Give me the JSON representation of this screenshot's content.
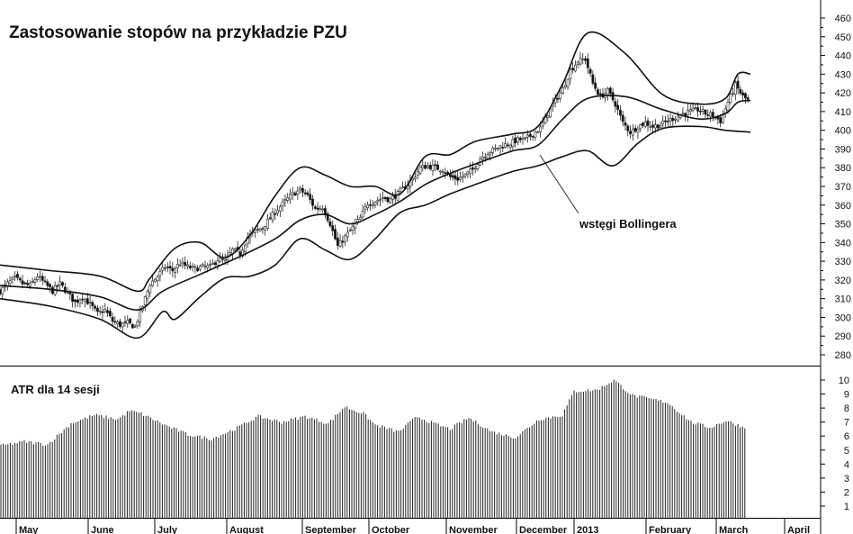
{
  "chart_data": [
    {
      "type": "candlestick",
      "title": "Zastosowanie stopów na przykładzie PZU",
      "annotation": "wstęgi Bollingera",
      "y_ticks": [
        280,
        290,
        300,
        310,
        320,
        330,
        340,
        350,
        360,
        370,
        380,
        390,
        400,
        410,
        420,
        430,
        440,
        450,
        460
      ],
      "ylim": [
        273,
        466
      ],
      "x_months": [
        "May",
        "June",
        "July",
        "August",
        "September",
        "October",
        "November",
        "December",
        "2013",
        "February",
        "March",
        "April"
      ],
      "series": [
        {
          "name": "Close",
          "points": [
            [
              0,
              314
            ],
            [
              3,
              318
            ],
            [
              6,
              321
            ],
            [
              9,
              318
            ],
            [
              12,
              317
            ],
            [
              15,
              322
            ],
            [
              18,
              318
            ],
            [
              21,
              314
            ],
            [
              24,
              318
            ],
            [
              27,
              313
            ],
            [
              30,
              308
            ],
            [
              33,
              311
            ],
            [
              36,
              307
            ],
            [
              39,
              302
            ],
            [
              42,
              304
            ],
            [
              45,
              298
            ],
            [
              48,
              296
            ],
            [
              51,
              297
            ],
            [
              54,
              295
            ],
            [
              57,
              306
            ],
            [
              60,
              318
            ],
            [
              63,
              322
            ],
            [
              66,
              327
            ],
            [
              69,
              325
            ],
            [
              72,
              329
            ],
            [
              75,
              327
            ],
            [
              78,
              326
            ],
            [
              81,
              327
            ],
            [
              84,
              327
            ],
            [
              87,
              331
            ],
            [
              90,
              330
            ],
            [
              93,
              336
            ],
            [
              96,
              334
            ],
            [
              99,
              343
            ],
            [
              102,
              346
            ],
            [
              105,
              348
            ],
            [
              108,
              353
            ],
            [
              111,
              358
            ],
            [
              114,
              362
            ],
            [
              117,
              366
            ],
            [
              120,
              368
            ],
            [
              123,
              365
            ],
            [
              126,
              358
            ],
            [
              129,
              359
            ],
            [
              132,
              350
            ],
            [
              135,
              338
            ],
            [
              138,
              343
            ],
            [
              141,
              348
            ],
            [
              144,
              353
            ],
            [
              147,
              361
            ],
            [
              150,
              362
            ],
            [
              153,
              364
            ],
            [
              156,
              363
            ],
            [
              159,
              366
            ],
            [
              162,
              370
            ],
            [
              165,
              374
            ],
            [
              168,
              380
            ],
            [
              171,
              381
            ],
            [
              174,
              380
            ],
            [
              177,
              379
            ],
            [
              180,
              375
            ],
            [
              183,
              374
            ],
            [
              186,
              376
            ],
            [
              189,
              379
            ],
            [
              192,
              385
            ],
            [
              195,
              388
            ],
            [
              198,
              390
            ],
            [
              201,
              392
            ],
            [
              204,
              393
            ],
            [
              207,
              395
            ],
            [
              210,
              395
            ],
            [
              213,
              398
            ],
            [
              216,
              401
            ],
            [
              219,
              409
            ],
            [
              222,
              416
            ],
            [
              225,
              422
            ],
            [
              228,
              432
            ],
            [
              231,
              437
            ],
            [
              234,
              438
            ],
            [
              237,
              425
            ],
            [
              240,
              418
            ],
            [
              243,
              421
            ],
            [
              246,
              414
            ],
            [
              249,
              404
            ],
            [
              252,
              399
            ],
            [
              255,
              402
            ],
            [
              258,
              404
            ],
            [
              261,
              402
            ],
            [
              264,
              403
            ],
            [
              267,
              405
            ],
            [
              270,
              407
            ],
            [
              273,
              409
            ],
            [
              276,
              410
            ],
            [
              279,
              411
            ],
            [
              282,
              409
            ],
            [
              285,
              408
            ],
            [
              288,
              405
            ],
            [
              291,
              415
            ],
            [
              294,
              424
            ],
            [
              297,
              418
            ],
            [
              299,
              416
            ]
          ]
        },
        {
          "name": "Bollinger upper",
          "points": [
            [
              0,
              328
            ],
            [
              20,
              325
            ],
            [
              40,
              322
            ],
            [
              55,
              314
            ],
            [
              60,
              321
            ],
            [
              70,
              337
            ],
            [
              80,
              340
            ],
            [
              90,
              332
            ],
            [
              100,
              344
            ],
            [
              110,
              365
            ],
            [
              120,
              380
            ],
            [
              130,
              376
            ],
            [
              140,
              370
            ],
            [
              150,
              370
            ],
            [
              160,
              366
            ],
            [
              170,
              386
            ],
            [
              180,
              387
            ],
            [
              190,
              394
            ],
            [
              205,
              398
            ],
            [
              215,
              402
            ],
            [
              225,
              425
            ],
            [
              235,
              452
            ],
            [
              250,
              441
            ],
            [
              265,
              419
            ],
            [
              280,
              414
            ],
            [
              290,
              417
            ],
            [
              295,
              430
            ],
            [
              300,
              430
            ]
          ]
        },
        {
          "name": "Bollinger middle",
          "points": [
            [
              0,
              317
            ],
            [
              20,
              315
            ],
            [
              40,
              311
            ],
            [
              55,
              304
            ],
            [
              65,
              314
            ],
            [
              80,
              323
            ],
            [
              95,
              332
            ],
            [
              110,
              342
            ],
            [
              120,
              352
            ],
            [
              130,
              355
            ],
            [
              140,
              350
            ],
            [
              150,
              355
            ],
            [
              160,
              362
            ],
            [
              170,
              371
            ],
            [
              180,
              377
            ],
            [
              190,
              382
            ],
            [
              205,
              389
            ],
            [
              215,
              392
            ],
            [
              225,
              406
            ],
            [
              235,
              417
            ],
            [
              250,
              418
            ],
            [
              265,
              411
            ],
            [
              280,
              406
            ],
            [
              290,
              409
            ],
            [
              295,
              415
            ],
            [
              300,
              416
            ]
          ]
        },
        {
          "name": "Bollinger lower",
          "points": [
            [
              0,
              310
            ],
            [
              20,
              306
            ],
            [
              40,
              299
            ],
            [
              55,
              289
            ],
            [
              65,
              303
            ],
            [
              70,
              299
            ],
            [
              80,
              311
            ],
            [
              90,
              321
            ],
            [
              100,
              322
            ],
            [
              110,
              328
            ],
            [
              120,
              342
            ],
            [
              130,
              336
            ],
            [
              140,
              331
            ],
            [
              150,
              342
            ],
            [
              160,
              356
            ],
            [
              170,
              360
            ],
            [
              180,
              366
            ],
            [
              190,
              371
            ],
            [
              205,
              378
            ],
            [
              215,
              381
            ],
            [
              225,
              386
            ],
            [
              235,
              389
            ],
            [
              245,
              381
            ],
            [
              255,
              393
            ],
            [
              265,
              401
            ],
            [
              280,
              402
            ],
            [
              290,
              400
            ],
            [
              300,
              399
            ]
          ]
        }
      ]
    },
    {
      "type": "bar",
      "title": "ATR dla 14 sesji",
      "y_ticks": [
        1,
        2,
        3,
        4,
        5,
        6,
        7,
        8,
        9,
        10
      ],
      "ylim": [
        0,
        10.6
      ],
      "series": [
        {
          "name": "ATR",
          "points": [
            [
              0,
              5.3
            ],
            [
              10,
              5.6
            ],
            [
              20,
              5.4
            ],
            [
              30,
              6.9
            ],
            [
              40,
              7.5
            ],
            [
              50,
              7.2
            ],
            [
              55,
              7.8
            ],
            [
              60,
              7.6
            ],
            [
              70,
              6.8
            ],
            [
              80,
              6.1
            ],
            [
              90,
              5.8
            ],
            [
              100,
              6.5
            ],
            [
              110,
              7.4
            ],
            [
              120,
              7.0
            ],
            [
              130,
              7.4
            ],
            [
              140,
              6.9
            ],
            [
              147,
              8.1
            ],
            [
              155,
              7.6
            ],
            [
              160,
              6.8
            ],
            [
              170,
              6.3
            ],
            [
              178,
              7.4
            ],
            [
              185,
              6.9
            ],
            [
              192,
              6.5
            ],
            [
              200,
              7.3
            ],
            [
              210,
              6.3
            ],
            [
              220,
              5.9
            ],
            [
              230,
              7.2
            ],
            [
              240,
              7.5
            ],
            [
              245,
              9.2
            ],
            [
              255,
              9.3
            ],
            [
              262,
              10.0
            ],
            [
              270,
              8.9
            ],
            [
              285,
              8.4
            ],
            [
              295,
              7.0
            ],
            [
              303,
              6.6
            ],
            [
              310,
              7.1
            ],
            [
              318,
              6.6
            ]
          ]
        }
      ]
    }
  ]
}
